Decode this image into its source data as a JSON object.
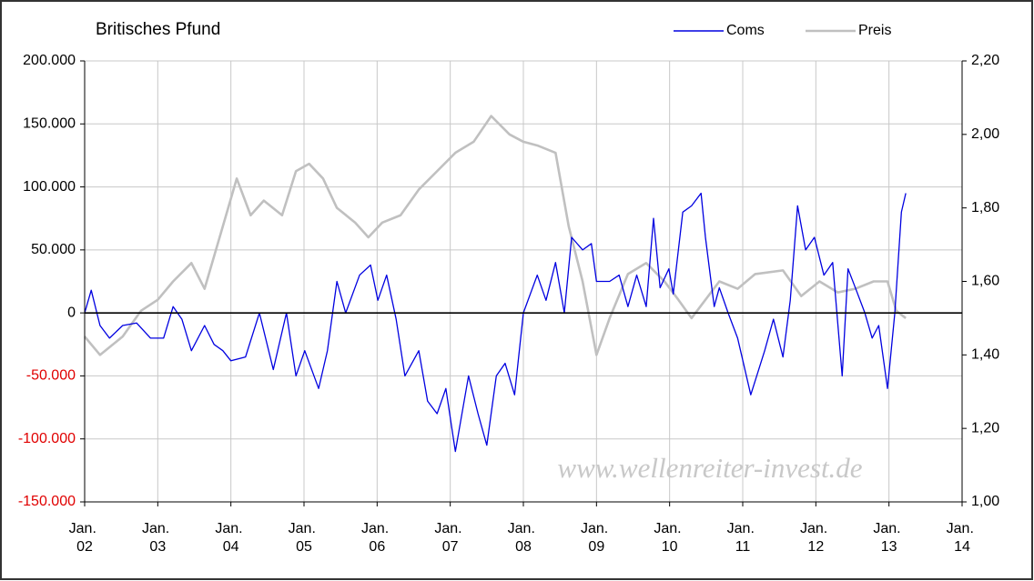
{
  "chart_data": {
    "type": "line",
    "title": "Britisches Pfund",
    "annotation": "www.wellenreiter-invest.de",
    "xlim": [
      2002,
      2014
    ],
    "xticks": [
      {
        "value": 2002,
        "label": "Jan. 02"
      },
      {
        "value": 2003,
        "label": "Jan. 03"
      },
      {
        "value": 2004,
        "label": "Jan. 04"
      },
      {
        "value": 2005,
        "label": "Jan. 05"
      },
      {
        "value": 2006,
        "label": "Jan. 06"
      },
      {
        "value": 2007,
        "label": "Jan. 07"
      },
      {
        "value": 2008,
        "label": "Jan. 08"
      },
      {
        "value": 2009,
        "label": "Jan. 09"
      },
      {
        "value": 2010,
        "label": "Jan. 10"
      },
      {
        "value": 2011,
        "label": "Jan. 11"
      },
      {
        "value": 2012,
        "label": "Jan. 12"
      },
      {
        "value": 2013,
        "label": "Jan. 13"
      },
      {
        "value": 2014,
        "label": "Jan. 14"
      }
    ],
    "ylim": [
      -150000,
      200000
    ],
    "yticks": [
      {
        "value": 200000,
        "label": "200.000"
      },
      {
        "value": 150000,
        "label": "150.000"
      },
      {
        "value": 100000,
        "label": "100.000"
      },
      {
        "value": 50000,
        "label": "50.000"
      },
      0,
      {
        "value": -50000,
        "label": "-50.000"
      },
      {
        "value": -100000,
        "label": "-100.000"
      },
      {
        "value": -150000,
        "label": "-150.000"
      }
    ],
    "y_negative_label_color": "#e00000",
    "y2lim": [
      1.0,
      2.2
    ],
    "y2ticks": [
      {
        "value": 2.2,
        "label": "2,20"
      },
      {
        "value": 2.0,
        "label": "2,00"
      },
      {
        "value": 1.8,
        "label": "1,80"
      },
      {
        "value": 1.6,
        "label": "1,60"
      },
      {
        "value": 1.4,
        "label": "1,40"
      },
      {
        "value": 1.2,
        "label": "1,20"
      },
      {
        "value": 1.0,
        "label": "1,00"
      }
    ],
    "grid": true,
    "legend": "top-right",
    "series": [
      {
        "name": "Coms",
        "color": "#0000e0",
        "x": [
          2002.0,
          2002.09,
          2002.21,
          2002.34,
          2002.52,
          2002.71,
          2002.9,
          2003.08,
          2003.21,
          2003.33,
          2003.46,
          2003.64,
          2003.77,
          2003.89,
          2004.0,
          2004.2,
          2004.39,
          2004.58,
          2004.76,
          2004.89,
          2005.01,
          2005.2,
          2005.32,
          2005.45,
          2005.57,
          2005.76,
          2005.91,
          2006.01,
          2006.13,
          2006.26,
          2006.38,
          2006.57,
          2006.69,
          2006.82,
          2006.94,
          2007.07,
          2007.25,
          2007.38,
          2007.5,
          2007.63,
          2007.75,
          2007.88,
          2008.0,
          2008.19,
          2008.31,
          2008.44,
          2008.56,
          2008.66,
          2008.81,
          2008.93,
          2009.0,
          2009.18,
          2009.31,
          2009.43,
          2009.55,
          2009.68,
          2009.78,
          2009.87,
          2009.99,
          2010.05,
          2010.18,
          2010.3,
          2010.43,
          2010.49,
          2010.61,
          2010.68,
          2010.8,
          2010.93,
          2011.11,
          2011.3,
          2011.42,
          2011.55,
          2011.65,
          2011.75,
          2011.86,
          2011.98,
          2012.11,
          2012.23,
          2012.36,
          2012.44,
          2012.54,
          2012.67,
          2012.77,
          2012.86,
          2012.98,
          2013.08,
          2013.17,
          2013.23
        ],
        "values": [
          0,
          18000,
          -10000,
          -20000,
          -10000,
          -8000,
          -20000,
          -20000,
          5000,
          -5000,
          -30000,
          -10000,
          -25000,
          -30000,
          -38000,
          -35000,
          0,
          -45000,
          0,
          -50000,
          -30000,
          -60000,
          -30000,
          25000,
          0,
          30000,
          38000,
          10000,
          30000,
          -5000,
          -50000,
          -30000,
          -70000,
          -80000,
          -60000,
          -110000,
          -50000,
          -80000,
          -105000,
          -50000,
          -40000,
          -65000,
          0,
          30000,
          10000,
          40000,
          0,
          60000,
          50000,
          55000,
          25000,
          25000,
          30000,
          5000,
          30000,
          5000,
          75000,
          20000,
          35000,
          15000,
          80000,
          85000,
          95000,
          60000,
          5000,
          20000,
          0,
          -20000,
          -65000,
          -30000,
          -5000,
          -35000,
          10000,
          85000,
          50000,
          60000,
          30000,
          40000,
          -50000,
          35000,
          20000,
          0,
          -20000,
          -10000,
          -60000,
          0,
          80000,
          95000
        ]
      },
      {
        "name": "Preis",
        "color": "#c0c0c0",
        "axis": "y2",
        "x": [
          2002.0,
          2002.21,
          2002.52,
          2002.77,
          2003.0,
          2003.21,
          2003.46,
          2003.64,
          2003.89,
          2004.08,
          2004.27,
          2004.45,
          2004.7,
          2004.89,
          2005.07,
          2005.26,
          2005.45,
          2005.7,
          2005.88,
          2006.07,
          2006.32,
          2006.57,
          2006.82,
          2007.07,
          2007.32,
          2007.56,
          2007.81,
          2008.0,
          2008.19,
          2008.44,
          2008.62,
          2008.81,
          2009.0,
          2009.18,
          2009.43,
          2009.68,
          2009.93,
          2010.12,
          2010.3,
          2010.68,
          2010.93,
          2011.17,
          2011.55,
          2011.8,
          2012.05,
          2012.3,
          2012.54,
          2012.79,
          2012.98,
          2013.1,
          2013.23
        ],
        "values": [
          1.45,
          1.4,
          1.45,
          1.52,
          1.55,
          1.6,
          1.65,
          1.58,
          1.75,
          1.88,
          1.78,
          1.82,
          1.78,
          1.9,
          1.92,
          1.88,
          1.8,
          1.76,
          1.72,
          1.76,
          1.78,
          1.85,
          1.9,
          1.95,
          1.98,
          2.05,
          2.0,
          1.98,
          1.97,
          1.95,
          1.75,
          1.6,
          1.4,
          1.5,
          1.62,
          1.65,
          1.6,
          1.55,
          1.5,
          1.6,
          1.58,
          1.62,
          1.63,
          1.56,
          1.6,
          1.57,
          1.58,
          1.6,
          1.6,
          1.52,
          1.5
        ]
      }
    ]
  }
}
